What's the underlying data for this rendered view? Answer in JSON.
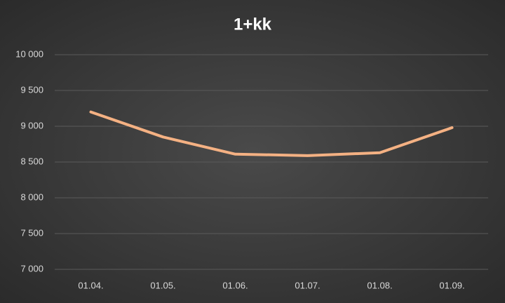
{
  "chart_data": {
    "type": "line",
    "title": "1+kk",
    "categories": [
      "01.04.",
      "01.05.",
      "01.06.",
      "01.07.",
      "01.08.",
      "01.09."
    ],
    "series": [
      {
        "name": "1+kk",
        "color": "#f4b183",
        "values": [
          9200,
          8850,
          8610,
          8590,
          8630,
          8980
        ]
      }
    ],
    "ylim": [
      7000,
      10000
    ],
    "yticks": [
      {
        "value": 7000,
        "label": "7 000"
      },
      {
        "value": 7500,
        "label": "7 500"
      },
      {
        "value": 8000,
        "label": "8 000"
      },
      {
        "value": 8500,
        "label": "8 500"
      },
      {
        "value": 9000,
        "label": "9 000"
      },
      {
        "value": 9500,
        "label": "9 500"
      },
      {
        "value": 10000,
        "label": "10 000"
      }
    ],
    "grid": true
  }
}
